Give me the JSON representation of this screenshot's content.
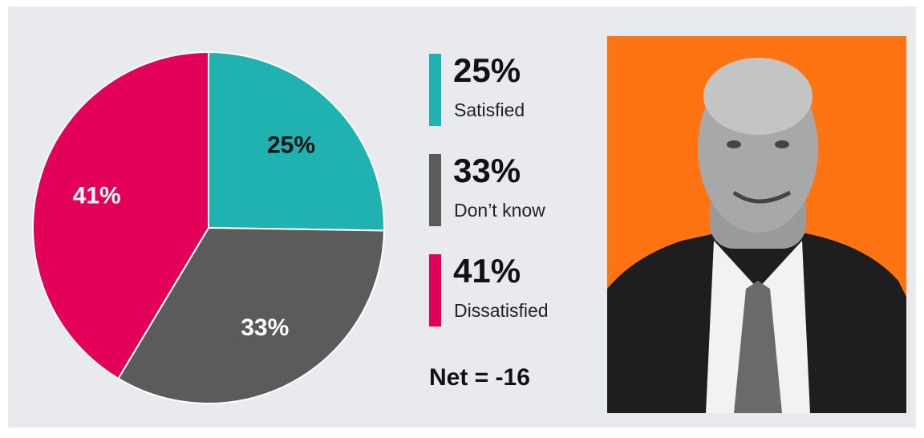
{
  "chart_data": {
    "type": "pie",
    "categories": [
      "Satisfied",
      "Don’t know",
      "Dissatisfied"
    ],
    "values": [
      25,
      33,
      41
    ],
    "value_labels": [
      "25%",
      "33%",
      "41%"
    ],
    "colors": [
      "#20b2b0",
      "#5b5b5b",
      "#e30058"
    ],
    "annotation": "Net = -16"
  }
}
